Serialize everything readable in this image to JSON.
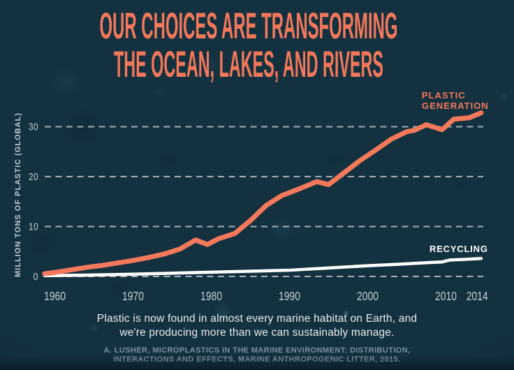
{
  "title": {
    "line1": "OUR CHOICES ARE TRANSFORMING",
    "line2": "THE OCEAN, LAKES, AND RIVERS"
  },
  "caption": {
    "line1": "Plastic is now found in almost every marine habitat on Earth, and",
    "line2": "we're producing more than we can sustainably manage."
  },
  "citation": {
    "line1": "A. LUSHER, MICROPLASTICS IN THE MARINE ENVIRONMENT: DISTRIBUTION,",
    "line2": "INTERACTIONS AND EFFECTS, MARINE ANTHROPOGENIC LITTER, 2015."
  },
  "colors": {
    "background": "#143140",
    "accent_orange": "#f5795b",
    "recycling_white": "#ffffff",
    "gridline": "#c6d1d6",
    "tick_text": "#c3ced4",
    "caption_text": "#e8eef0",
    "citation_text": "#7b929f"
  },
  "chart_data": {
    "type": "line",
    "title": "",
    "xlabel": "",
    "ylabel": "MILLION TONS OF PLASTIC (GLOBAL)",
    "x_ticks": [
      1960,
      1970,
      1980,
      1990,
      2000,
      2010,
      2014
    ],
    "y_ticks": [
      0,
      10,
      20,
      30
    ],
    "xlim": [
      1958.7,
      2014.5
    ],
    "ylim": [
      0,
      33
    ],
    "grid": "horizontal-dashed",
    "legend_position": "inline-end-labels",
    "series": [
      {
        "name": "PLASTIC GENERATION",
        "color": "#f5795b",
        "x": [
          1958.7,
          1960,
          1962,
          1964,
          1966,
          1968,
          1970,
          1972,
          1974,
          1976,
          1978,
          1979.5,
          1981,
          1983,
          1985,
          1987,
          1989,
          1991,
          1993.5,
          1995,
          1996.5,
          1999,
          2001,
          2003,
          2005,
          2006,
          2007.5,
          2009.5,
          2011,
          2013,
          2014.5
        ],
        "values": [
          0.55,
          0.8,
          1.3,
          1.8,
          2.2,
          2.7,
          3.2,
          3.8,
          4.5,
          5.5,
          7.3,
          6.4,
          7.6,
          8.6,
          11.2,
          14.2,
          16.2,
          17.4,
          19.0,
          18.4,
          20.2,
          23.2,
          25.3,
          27.5,
          29.0,
          29.3,
          30.4,
          29.4,
          31.5,
          31.8,
          32.8
        ]
      },
      {
        "name": "RECYCLING",
        "color": "#ffffff",
        "x": [
          1958.7,
          1965,
          1970,
          1975,
          1980,
          1985,
          1990,
          1995,
          2000,
          2004,
          2008,
          2009.5,
          2010.5,
          2012,
          2014.5
        ],
        "values": [
          0.15,
          0.3,
          0.45,
          0.65,
          0.85,
          1.05,
          1.25,
          1.7,
          2.15,
          2.45,
          2.8,
          2.9,
          3.3,
          3.4,
          3.6
        ]
      }
    ]
  }
}
